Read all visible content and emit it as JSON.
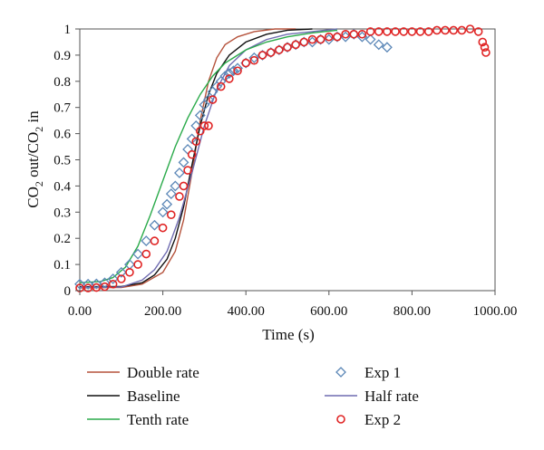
{
  "chart_data": {
    "type": "line",
    "title": "",
    "xlabel": "Time (s)",
    "ylabel_parts": {
      "a": "CO",
      "a_sub": "2",
      "b": " out/CO",
      "b_sub": "2",
      "c": " in"
    },
    "xlim": [
      0,
      1000
    ],
    "ylim": [
      0,
      1
    ],
    "x_ticks": [
      0,
      200,
      400,
      600,
      800,
      1000
    ],
    "x_tick_labels": [
      "0.00",
      "200.00",
      "400.00",
      "600.00",
      "800.00",
      "1000.00"
    ],
    "y_ticks": [
      0,
      0.1,
      0.2,
      0.3,
      0.4,
      0.5,
      0.6,
      0.7,
      0.8,
      0.9,
      1
    ],
    "y_tick_labels": [
      "0",
      "0.1",
      "0.2",
      "0.3",
      "0.4",
      "0.5",
      "0.6",
      "0.7",
      "0.8",
      "0.9",
      "1"
    ],
    "grid": false,
    "legend_position": "bottom",
    "series": [
      {
        "name": "Double rate",
        "kind": "line",
        "color": "#b5523b",
        "x": [
          0,
          100,
          150,
          200,
          230,
          250,
          270,
          290,
          310,
          330,
          350,
          380,
          420,
          470,
          520
        ],
        "y": [
          0.01,
          0.012,
          0.025,
          0.07,
          0.15,
          0.27,
          0.45,
          0.65,
          0.8,
          0.89,
          0.94,
          0.97,
          0.99,
          1.0,
          1.0
        ]
      },
      {
        "name": "Exp 1",
        "kind": "scatter",
        "marker": "diamond",
        "color": "#5b87b7",
        "x": [
          0,
          20,
          40,
          60,
          80,
          100,
          120,
          140,
          160,
          180,
          200,
          210,
          220,
          230,
          240,
          250,
          260,
          270,
          280,
          290,
          300,
          310,
          320,
          330,
          340,
          350,
          360,
          370,
          380,
          400,
          420,
          440,
          460,
          480,
          500,
          520,
          540,
          560,
          580,
          600,
          620,
          640,
          660,
          680,
          700,
          720,
          740
        ],
        "y": [
          0.025,
          0.025,
          0.026,
          0.03,
          0.045,
          0.07,
          0.1,
          0.14,
          0.19,
          0.25,
          0.3,
          0.33,
          0.37,
          0.4,
          0.45,
          0.49,
          0.54,
          0.58,
          0.63,
          0.67,
          0.71,
          0.73,
          0.76,
          0.78,
          0.8,
          0.82,
          0.83,
          0.84,
          0.85,
          0.87,
          0.89,
          0.9,
          0.91,
          0.92,
          0.93,
          0.94,
          0.95,
          0.95,
          0.96,
          0.96,
          0.97,
          0.97,
          0.98,
          0.97,
          0.96,
          0.94,
          0.93
        ]
      },
      {
        "name": "Baseline",
        "kind": "line",
        "color": "#111111",
        "x": [
          0,
          100,
          150,
          180,
          210,
          230,
          250,
          270,
          290,
          310,
          330,
          360,
          400,
          450,
          500,
          560
        ],
        "y": [
          0.015,
          0.016,
          0.03,
          0.06,
          0.12,
          0.2,
          0.32,
          0.48,
          0.63,
          0.75,
          0.83,
          0.9,
          0.95,
          0.98,
          0.995,
          1.0
        ]
      },
      {
        "name": "Half rate",
        "kind": "line",
        "color": "#6f6bb0",
        "x": [
          0,
          100,
          150,
          180,
          210,
          240,
          270,
          300,
          330,
          360,
          400,
          450,
          500,
          560,
          620
        ],
        "y": [
          0.012,
          0.014,
          0.04,
          0.08,
          0.15,
          0.28,
          0.45,
          0.63,
          0.77,
          0.86,
          0.92,
          0.96,
          0.98,
          0.99,
          1.0
        ]
      },
      {
        "name": "Tenth rate",
        "kind": "line",
        "color": "#2aaa4a",
        "x": [
          0,
          50,
          80,
          110,
          140,
          170,
          200,
          230,
          260,
          290,
          320,
          350,
          400,
          450,
          500,
          560,
          620
        ],
        "y": [
          0.03,
          0.035,
          0.05,
          0.09,
          0.17,
          0.29,
          0.42,
          0.55,
          0.66,
          0.75,
          0.82,
          0.87,
          0.92,
          0.95,
          0.97,
          0.985,
          0.995
        ]
      },
      {
        "name": "Exp 2",
        "kind": "scatter",
        "marker": "circle",
        "color": "#e02424",
        "x": [
          0,
          20,
          40,
          60,
          80,
          100,
          120,
          140,
          160,
          180,
          200,
          220,
          240,
          250,
          260,
          270,
          280,
          290,
          300,
          310,
          320,
          340,
          360,
          380,
          400,
          420,
          440,
          460,
          480,
          500,
          520,
          540,
          560,
          580,
          600,
          620,
          640,
          660,
          680,
          700,
          720,
          740,
          760,
          780,
          800,
          820,
          840,
          860,
          880,
          900,
          920,
          940,
          960,
          970,
          975,
          978
        ],
        "y": [
          0.01,
          0.01,
          0.012,
          0.015,
          0.025,
          0.045,
          0.07,
          0.1,
          0.14,
          0.19,
          0.24,
          0.29,
          0.36,
          0.4,
          0.46,
          0.52,
          0.57,
          0.61,
          0.63,
          0.63,
          0.73,
          0.78,
          0.81,
          0.84,
          0.87,
          0.88,
          0.9,
          0.91,
          0.92,
          0.93,
          0.94,
          0.95,
          0.96,
          0.96,
          0.97,
          0.97,
          0.98,
          0.98,
          0.98,
          0.99,
          0.99,
          0.99,
          0.99,
          0.99,
          0.99,
          0.99,
          0.99,
          0.995,
          0.995,
          0.995,
          0.995,
          1.0,
          0.99,
          0.95,
          0.93,
          0.91
        ]
      }
    ]
  }
}
